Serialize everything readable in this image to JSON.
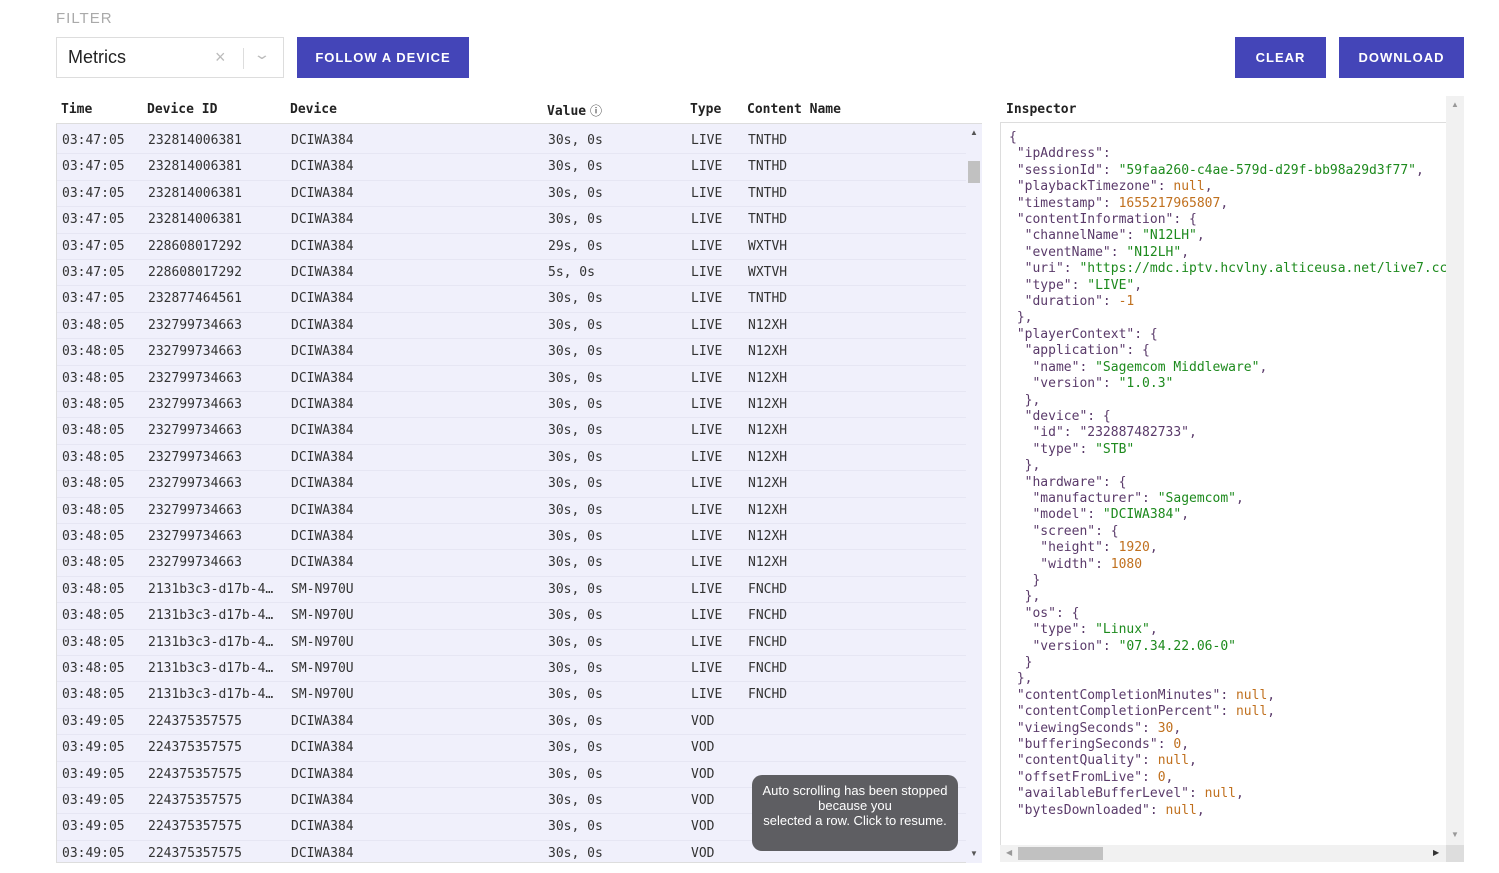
{
  "filter": {
    "label": "FILTER",
    "selected": "Metrics",
    "clear_icon": "×",
    "chevron_icon": "⌄"
  },
  "toolbar": {
    "follow_label": "FOLLOW A DEVICE",
    "clear_label": "CLEAR",
    "download_label": "DOWNLOAD"
  },
  "colors": {
    "accent": "#4445b8",
    "row_selected": "#f0f0fb",
    "json_string": "#1d8a1d",
    "json_number": "#c0701e",
    "json_key": "#5a3a6a"
  },
  "table": {
    "columns": [
      "Time",
      "Device ID",
      "Device",
      "Value",
      "Type",
      "Content Name"
    ],
    "rows": [
      [
        "03:47:05",
        "232814006381",
        "DCIWA384",
        "30s, 0s",
        "LIVE",
        "TNTHD"
      ],
      [
        "03:47:05",
        "232814006381",
        "DCIWA384",
        "30s, 0s",
        "LIVE",
        "TNTHD"
      ],
      [
        "03:47:05",
        "232814006381",
        "DCIWA384",
        "30s, 0s",
        "LIVE",
        "TNTHD"
      ],
      [
        "03:47:05",
        "232814006381",
        "DCIWA384",
        "30s, 0s",
        "LIVE",
        "TNTHD"
      ],
      [
        "03:47:05",
        "228608017292",
        "DCIWA384",
        "29s, 0s",
        "LIVE",
        "WXTVH"
      ],
      [
        "03:47:05",
        "228608017292",
        "DCIWA384",
        "5s, 0s",
        "LIVE",
        "WXTVH"
      ],
      [
        "03:47:05",
        "232877464561",
        "DCIWA384",
        "30s, 0s",
        "LIVE",
        "TNTHD"
      ],
      [
        "03:48:05",
        "232799734663",
        "DCIWA384",
        "30s, 0s",
        "LIVE",
        "N12XH"
      ],
      [
        "03:48:05",
        "232799734663",
        "DCIWA384",
        "30s, 0s",
        "LIVE",
        "N12XH"
      ],
      [
        "03:48:05",
        "232799734663",
        "DCIWA384",
        "30s, 0s",
        "LIVE",
        "N12XH"
      ],
      [
        "03:48:05",
        "232799734663",
        "DCIWA384",
        "30s, 0s",
        "LIVE",
        "N12XH"
      ],
      [
        "03:48:05",
        "232799734663",
        "DCIWA384",
        "30s, 0s",
        "LIVE",
        "N12XH"
      ],
      [
        "03:48:05",
        "232799734663",
        "DCIWA384",
        "30s, 0s",
        "LIVE",
        "N12XH"
      ],
      [
        "03:48:05",
        "232799734663",
        "DCIWA384",
        "30s, 0s",
        "LIVE",
        "N12XH"
      ],
      [
        "03:48:05",
        "232799734663",
        "DCIWA384",
        "30s, 0s",
        "LIVE",
        "N12XH"
      ],
      [
        "03:48:05",
        "232799734663",
        "DCIWA384",
        "30s, 0s",
        "LIVE",
        "N12XH"
      ],
      [
        "03:48:05",
        "232799734663",
        "DCIWA384",
        "30s, 0s",
        "LIVE",
        "N12XH"
      ],
      [
        "03:48:05",
        "2131b3c3-d17b-4…",
        "SM-N970U",
        "30s, 0s",
        "LIVE",
        "FNCHD"
      ],
      [
        "03:48:05",
        "2131b3c3-d17b-4…",
        "SM-N970U",
        "30s, 0s",
        "LIVE",
        "FNCHD"
      ],
      [
        "03:48:05",
        "2131b3c3-d17b-4…",
        "SM-N970U",
        "30s, 0s",
        "LIVE",
        "FNCHD"
      ],
      [
        "03:48:05",
        "2131b3c3-d17b-4…",
        "SM-N970U",
        "30s, 0s",
        "LIVE",
        "FNCHD"
      ],
      [
        "03:48:05",
        "2131b3c3-d17b-4…",
        "SM-N970U",
        "30s, 0s",
        "LIVE",
        "FNCHD"
      ],
      [
        "03:49:05",
        "224375357575",
        "DCIWA384",
        "30s, 0s",
        "VOD",
        ""
      ],
      [
        "03:49:05",
        "224375357575",
        "DCIWA384",
        "30s, 0s",
        "VOD",
        ""
      ],
      [
        "03:49:05",
        "224375357575",
        "DCIWA384",
        "30s, 0s",
        "VOD",
        ""
      ],
      [
        "03:49:05",
        "224375357575",
        "DCIWA384",
        "30s, 0s",
        "VOD",
        ""
      ],
      [
        "03:49:05",
        "224375357575",
        "DCIWA384",
        "30s, 0s",
        "VOD",
        ""
      ],
      [
        "03:49:05",
        "224375357575",
        "DCIWA384",
        "30s, 0s",
        "VOD",
        ""
      ]
    ]
  },
  "toast": {
    "line1": "Auto scrolling has been stopped because you",
    "line2": "selected a row. Click to resume."
  },
  "inspector": {
    "title": "Inspector",
    "lines": [
      "{",
      " \"ipAddress\":",
      " \"sessionId\": \"59faa260-c4ae-579d-d29f-bb98a29d3f77\",",
      " \"playbackTimezone\": null,",
      " \"timestamp\": 1655217965807,",
      " \"contentInformation\": {",
      "  \"channelName\": \"N12LH\",",
      "  \"eventName\": \"N12LH\",",
      "  \"uri\": \"https://mdc.iptv.hcvlny.alticeusa.net/live7.cc",
      "  \"type\": \"LIVE\",",
      "  \"duration\": -1",
      " },",
      " \"playerContext\": {",
      "  \"application\": {",
      "   \"name\": \"Sagemcom Middleware\",",
      "   \"version\": \"1.0.3\"",
      "  },",
      "  \"device\": {",
      "   \"id\": \"232887482733\",",
      "   \"type\": \"STB\"",
      "  },",
      "  \"hardware\": {",
      "   \"manufacturer\": \"Sagemcom\",",
      "   \"model\": \"DCIWA384\",",
      "   \"screen\": {",
      "    \"height\": 1920,",
      "    \"width\": 1080",
      "   }",
      "  },",
      "  \"os\": {",
      "   \"type\": \"Linux\",",
      "   \"version\": \"07.34.22.06-0\"",
      "  }",
      " },",
      " \"contentCompletionMinutes\": null,",
      " \"contentCompletionPercent\": null,",
      " \"viewingSeconds\": 30,",
      " \"bufferingSeconds\": 0,",
      " \"contentQuality\": null,",
      " \"offsetFromLive\": 0,",
      " \"availableBufferLevel\": null,",
      " \"bytesDownloaded\": null,"
    ]
  }
}
